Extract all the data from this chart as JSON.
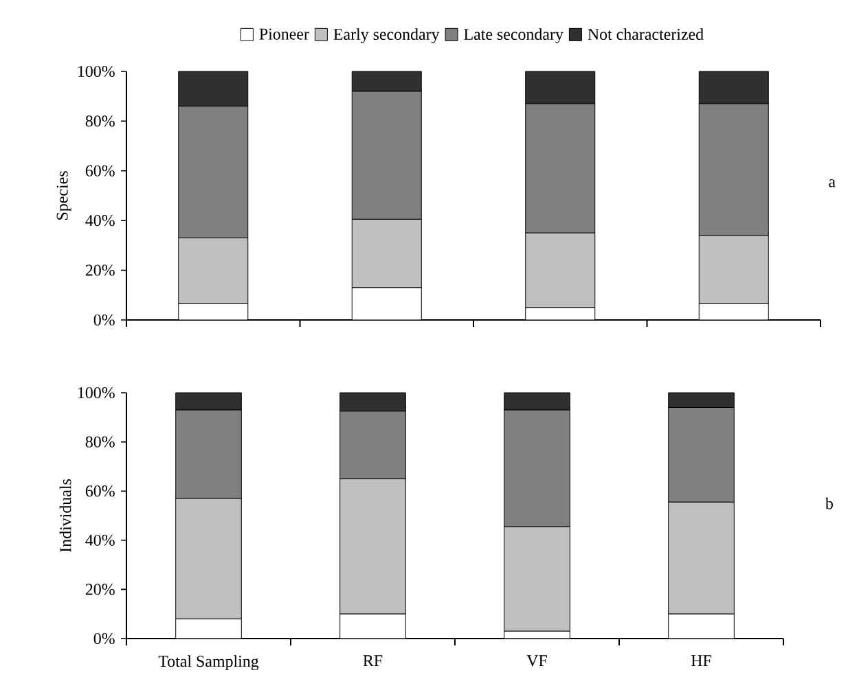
{
  "chart_data": [
    {
      "type": "bar",
      "stacked": true,
      "ylabel": "Species",
      "legend": "top",
      "tick_labels": "y",
      "categories": [
        null,
        null,
        null,
        null
      ],
      "ylim": [
        0,
        100
      ],
      "yticks": [
        {
          "value": 0,
          "label": "0%"
        },
        {
          "value": 20,
          "label": "20%"
        },
        {
          "value": 40,
          "label": "40%"
        },
        {
          "value": 60,
          "label": "60%"
        },
        {
          "value": 80,
          "label": "80%"
        },
        {
          "value": 100,
          "label": "100%"
        }
      ],
      "series": [
        {
          "name": "Pioneer",
          "color": "#ffffff",
          "values": [
            6.5,
            13,
            5,
            6.5
          ]
        },
        {
          "name": "Early secondary",
          "color": "#c0c0c0",
          "values": [
            26.5,
            27.5,
            30,
            27.5
          ]
        },
        {
          "name": "Late secondary",
          "color": "#808080",
          "values": [
            53,
            51.5,
            52,
            53
          ]
        },
        {
          "name": "Not characterized",
          "color": "#303030",
          "values": [
            14,
            8,
            13,
            13
          ]
        }
      ],
      "annotations": [
        "a"
      ]
    },
    {
      "type": "bar",
      "stacked": true,
      "ylabel": "Individuals",
      "categories": [
        "Total Sampling",
        "RF",
        "VF",
        "HF"
      ],
      "ylim": [
        0,
        100
      ],
      "yticks": [
        {
          "value": 0,
          "label": "0%"
        },
        {
          "value": 20,
          "label": "20%"
        },
        {
          "value": 40,
          "label": "40%"
        },
        {
          "value": 60,
          "label": "60%"
        },
        {
          "value": 80,
          "label": "80%"
        },
        {
          "value": 100,
          "label": "100%"
        }
      ],
      "series": [
        {
          "color": "#ffffff",
          "values": [
            8,
            10,
            3,
            10
          ]
        },
        {
          "color": "#c0c0c0",
          "values": [
            49,
            55,
            42.5,
            45.5
          ]
        },
        {
          "color": "#808080",
          "values": [
            36,
            27.5,
            47.5,
            38.5
          ]
        },
        {
          "color": "#303030",
          "values": [
            7,
            7.5,
            7,
            6
          ]
        }
      ],
      "annotations": [
        "b"
      ]
    }
  ]
}
